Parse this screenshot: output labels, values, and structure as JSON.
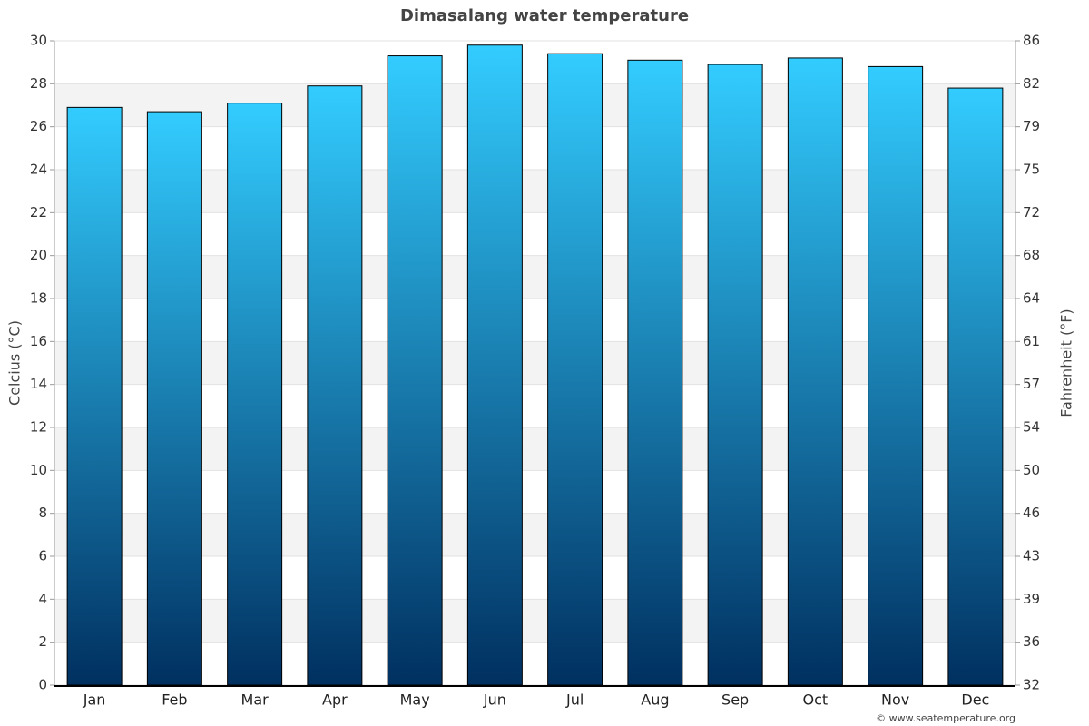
{
  "chart_data": {
    "type": "bar",
    "title": "Dimasalang water temperature",
    "y_label": "Celcius (°C)",
    "y2_label": "Fahrenheit (°F)",
    "footer": "© www.seatemperature.org",
    "categories": [
      "Jan",
      "Feb",
      "Mar",
      "Apr",
      "May",
      "Jun",
      "Jul",
      "Aug",
      "Sep",
      "Oct",
      "Nov",
      "Dec"
    ],
    "values": [
      26.9,
      26.7,
      27.1,
      27.9,
      29.3,
      29.8,
      29.4,
      29.1,
      28.9,
      29.2,
      28.8,
      27.8
    ],
    "color": "#33ccff",
    "color_bottom": "#003060",
    "ylim": [
      0,
      30
    ],
    "yticks": [
      0,
      2,
      4,
      6,
      8,
      10,
      12,
      14,
      16,
      18,
      20,
      22,
      24,
      26,
      28,
      30
    ],
    "y2lim": [
      32,
      86
    ],
    "y2ticks": [
      32,
      {
        "value": 35.6,
        "label": "36"
      },
      {
        "value": 39.2,
        "label": "39"
      },
      {
        "value": 42.8,
        "label": "43"
      },
      {
        "value": 46.4,
        "label": "46"
      },
      50,
      {
        "value": 53.6,
        "label": "54"
      },
      {
        "value": 57.2,
        "label": "57"
      },
      {
        "value": 60.8,
        "label": "61"
      },
      {
        "value": 64.4,
        "label": "64"
      },
      68,
      {
        "value": 71.6,
        "label": "72"
      },
      {
        "value": 75.2,
        "label": "75"
      },
      {
        "value": 78.8,
        "label": "79"
      },
      {
        "value": 82.4,
        "label": "82"
      },
      86
    ],
    "grid": true
  }
}
